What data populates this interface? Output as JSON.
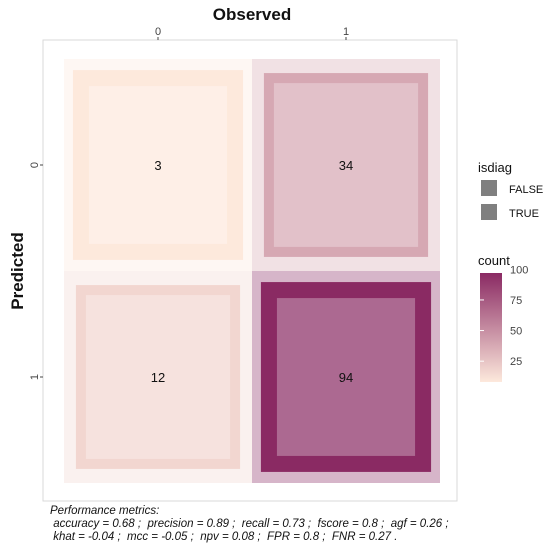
{
  "chart_data": {
    "type": "heatmap",
    "title": "Observed",
    "xlabel": "Observed",
    "ylabel": "Predicted",
    "x_categories": [
      "0",
      "1"
    ],
    "y_categories": [
      "0",
      "1"
    ],
    "cells": [
      {
        "observed": "0",
        "predicted": "0",
        "count": 3,
        "isdiag": true
      },
      {
        "observed": "1",
        "predicted": "0",
        "count": 34,
        "isdiag": false
      },
      {
        "observed": "0",
        "predicted": "1",
        "count": 12,
        "isdiag": false
      },
      {
        "observed": "1",
        "predicted": "1",
        "count": 94,
        "isdiag": true
      }
    ],
    "color_scale": {
      "low": "#fde9dc",
      "high": "#8a2a63",
      "range": [
        3,
        94
      ]
    },
    "legend": {
      "position": "right",
      "isdiag": {
        "title": "isdiag",
        "items": [
          "FALSE",
          "TRUE"
        ],
        "swatch_color": "#7f7f7f"
      },
      "count": {
        "title": "count",
        "ticks": [
          25,
          50,
          75
        ]
      }
    },
    "grid": false
  },
  "footnote": {
    "title": "Performance metrics:",
    "line1": " accuracy = 0.68 ;  precision = 0.89 ;  recall = 0.73 ;  fscore = 0.8 ;  agf = 0.26 ;",
    "line2": " khat = -0.04 ;  mcc = -0.05 ;  npv = 0.08 ;  FPR = 0.8 ;  FNR = 0.27 ."
  }
}
